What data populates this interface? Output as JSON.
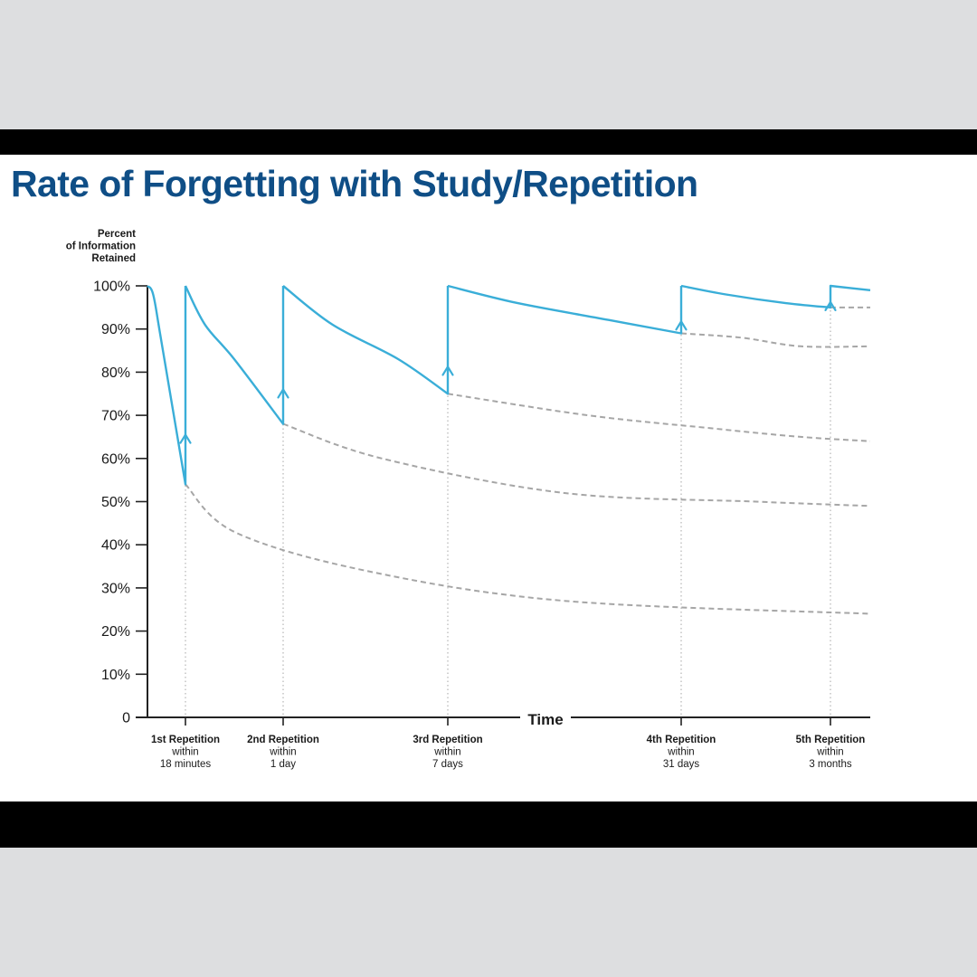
{
  "colors": {
    "curve": "#3aaed8",
    "projection": "#a6a6a6",
    "guide": "#b5b5b5",
    "axis": "#222222",
    "title": "#0f4e86"
  },
  "chart_data": {
    "type": "line",
    "title": "Rate of Forgetting with Study/Repetition",
    "ylabel_lines": [
      "Percent",
      "of Information",
      "Retained"
    ],
    "xlabel": "Time",
    "ylim": [
      0,
      100
    ],
    "y_ticks": [
      "0",
      "10%",
      "20%",
      "30%",
      "40%",
      "50%",
      "60%",
      "70%",
      "80%",
      "90%",
      "100%"
    ],
    "x_ticks": [
      {
        "lines": [
          "1st Repetition",
          "within",
          "18 minutes"
        ]
      },
      {
        "lines": [
          "2nd Repetition",
          "within",
          "1 day"
        ]
      },
      {
        "lines": [
          "3rd Repetition",
          "within",
          "7 days"
        ]
      },
      {
        "lines": [
          "4th Repetition",
          "within",
          "31 days"
        ]
      },
      {
        "lines": [
          "5th Repetition",
          "within",
          "3 months"
        ]
      }
    ],
    "series": [
      {
        "kind": "retention",
        "points": [
          [
            0,
            100
          ],
          [
            0.15,
            98
          ],
          [
            0.35,
            88
          ],
          [
            1,
            54
          ],
          [
            1,
            100
          ]
        ]
      },
      {
        "kind": "retention",
        "points": [
          [
            1,
            100
          ],
          [
            1.2,
            91
          ],
          [
            1.5,
            83
          ],
          [
            2,
            68
          ],
          [
            2,
            100
          ]
        ]
      },
      {
        "kind": "retention",
        "points": [
          [
            2,
            100
          ],
          [
            2.3,
            91
          ],
          [
            2.7,
            83
          ],
          [
            3,
            75
          ],
          [
            3,
            100
          ]
        ]
      },
      {
        "kind": "retention",
        "points": [
          [
            3,
            100
          ],
          [
            3.3,
            96
          ],
          [
            3.7,
            92
          ],
          [
            4,
            89
          ],
          [
            4,
            100
          ]
        ]
      },
      {
        "kind": "retention",
        "points": [
          [
            4,
            100
          ],
          [
            4.3,
            98
          ],
          [
            4.7,
            96
          ],
          [
            5,
            95
          ],
          [
            5,
            100
          ],
          [
            5.24,
            99
          ]
        ]
      },
      {
        "kind": "projection",
        "points": [
          [
            1,
            54
          ],
          [
            1.5,
            43
          ],
          [
            2.5,
            34
          ],
          [
            3.5,
            27
          ],
          [
            5.24,
            24
          ]
        ]
      },
      {
        "kind": "projection",
        "points": [
          [
            2,
            68
          ],
          [
            2.6,
            60
          ],
          [
            3.5,
            52
          ],
          [
            4.5,
            50
          ],
          [
            5.24,
            49
          ]
        ]
      },
      {
        "kind": "projection",
        "points": [
          [
            3,
            75
          ],
          [
            3.6,
            70
          ],
          [
            4.2,
            67
          ],
          [
            4.8,
            65
          ],
          [
            5.24,
            64
          ]
        ]
      },
      {
        "kind": "projection",
        "points": [
          [
            4,
            89
          ],
          [
            4.4,
            88
          ],
          [
            4.8,
            86
          ],
          [
            5.24,
            86
          ]
        ]
      },
      {
        "kind": "projection",
        "points": [
          [
            5,
            95
          ],
          [
            5.24,
            95
          ]
        ]
      }
    ],
    "grid": false,
    "legend": "none"
  }
}
